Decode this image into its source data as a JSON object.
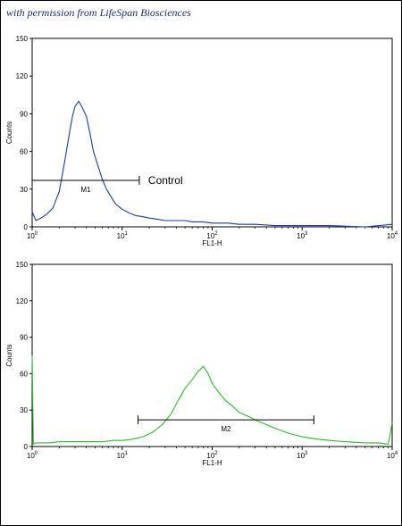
{
  "watermark": "with permission from LifeSpan Biosciences",
  "chart_data": [
    {
      "type": "line",
      "title": "",
      "xlabel": "FL1-H",
      "ylabel": "Counts",
      "xscale": "log",
      "xlim": [
        1,
        10000
      ],
      "ylim": [
        0,
        150
      ],
      "yticks": [
        "0",
        "30",
        "60",
        "90",
        "120",
        "150"
      ],
      "xticks": [
        {
          "base": "10",
          "exp": "0"
        },
        {
          "base": "10",
          "exp": "1"
        },
        {
          "base": "10",
          "exp": "2"
        },
        {
          "base": "10",
          "exp": "3"
        },
        {
          "base": "10",
          "exp": "4"
        }
      ],
      "color": "#1f3d99",
      "series": [
        {
          "x": [
            1.0,
            1.1,
            1.25,
            1.45,
            1.7,
            2.0,
            2.3,
            2.6,
            2.8,
            3.0,
            3.3,
            3.6,
            4.0,
            4.4,
            4.8,
            5.3,
            6.0,
            6.7,
            7.5,
            8.5,
            10,
            12,
            14,
            17,
            20,
            25,
            30,
            40,
            50,
            60,
            80,
            100,
            150,
            200,
            300,
            500,
            1000,
            2000,
            5000,
            10000
          ],
          "y": [
            12,
            5,
            7,
            10,
            15,
            28,
            52,
            75,
            88,
            96,
            100,
            95,
            88,
            74,
            60,
            50,
            38,
            30,
            24,
            18,
            14,
            11,
            9,
            8,
            7,
            6,
            5,
            5,
            5,
            4,
            4,
            3,
            3,
            2,
            2,
            1,
            1,
            1,
            0,
            2
          ]
        }
      ],
      "markers": [
        {
          "label": "M1",
          "from": 1.0,
          "to": 15.5,
          "level": 37
        }
      ],
      "annotation": "Control"
    },
    {
      "type": "line",
      "title": "",
      "xlabel": "FL1-H",
      "ylabel": "Counts",
      "xscale": "log",
      "xlim": [
        1,
        10000
      ],
      "ylim": [
        0,
        150
      ],
      "yticks": [
        "0",
        "30",
        "60",
        "90",
        "120",
        "150"
      ],
      "xticks": [
        {
          "base": "10",
          "exp": "0"
        },
        {
          "base": "10",
          "exp": "1"
        },
        {
          "base": "10",
          "exp": "2"
        },
        {
          "base": "10",
          "exp": "3"
        },
        {
          "base": "10",
          "exp": "4"
        }
      ],
      "color": "#2db82d",
      "series": [
        {
          "x": [
            1.0,
            1.03,
            1.1,
            1.3,
            1.6,
            2,
            3,
            4,
            6,
            8,
            10,
            13,
            17,
            22,
            28,
            35,
            42,
            50,
            60,
            70,
            80,
            90,
            100,
            120,
            140,
            170,
            200,
            250,
            300,
            400,
            500,
            700,
            1000,
            1500,
            2000,
            3000,
            5000,
            7000,
            9000,
            9500,
            10000
          ],
          "y": [
            75,
            2,
            3,
            3,
            3,
            4,
            4,
            4,
            4,
            5,
            5,
            6,
            8,
            12,
            18,
            27,
            38,
            48,
            55,
            62,
            66,
            60,
            52,
            44,
            38,
            33,
            28,
            25,
            22,
            18,
            15,
            11,
            8,
            6,
            5,
            4,
            3,
            3,
            2,
            10,
            20
          ]
        }
      ],
      "markers": [
        {
          "label": "M2",
          "from": 15.0,
          "to": 1350,
          "level": 22
        }
      ],
      "annotation": ""
    }
  ]
}
